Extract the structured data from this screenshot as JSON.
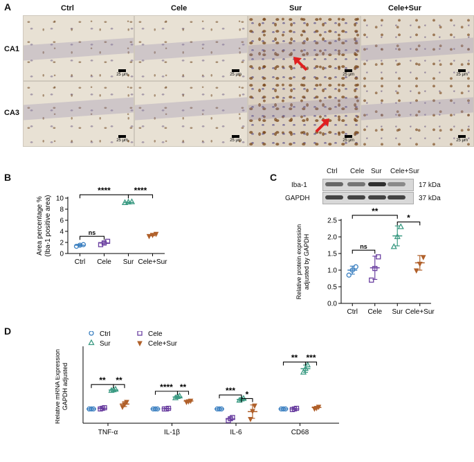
{
  "panel_letters": {
    "a": "A",
    "b": "B",
    "c": "C",
    "d": "D"
  },
  "panel_a": {
    "columns": [
      "Ctrl",
      "Cele",
      "Sur",
      "Cele+Sur"
    ],
    "rows": [
      "CA1",
      "CA3"
    ],
    "scale_bar": "25 μm"
  },
  "panel_c_blot": {
    "lanes": [
      "Ctrl",
      "Cele",
      "Sur",
      "Cele+Sur"
    ],
    "rows": [
      {
        "name": "Iba-1",
        "size": "17 kDa",
        "intensity": [
          0.55,
          0.45,
          0.95,
          0.3
        ]
      },
      {
        "name": "GAPDH",
        "size": "37 kDa",
        "intensity": [
          0.8,
          0.8,
          0.8,
          0.8
        ]
      }
    ]
  },
  "chart_data": [
    {
      "type": "scatter",
      "panel": "B",
      "ylabel_line1": "Area percentage %",
      "ylabel_line2": "(Iba-1 positive area)",
      "categories": [
        "Ctrl",
        "Cele",
        "Sur",
        "Cele+Sur"
      ],
      "ylim": [
        0,
        10
      ],
      "yticks": [
        "0",
        "2",
        "4",
        "6",
        "8",
        "10"
      ],
      "ytick_values": [
        0,
        2,
        4,
        6,
        8,
        10
      ],
      "markers": [
        "circle",
        "square",
        "triangle",
        "diamond"
      ],
      "colors": [
        "#3a7fc0",
        "#6a3fa0",
        "#3a9a82",
        "#b0602a"
      ],
      "points": [
        [
          1.3,
          1.5,
          1.6
        ],
        [
          1.6,
          1.9,
          2.2
        ],
        [
          9.15,
          9.25,
          9.3
        ],
        [
          3.2,
          3.4,
          3.6
        ]
      ],
      "mean": [
        1.5,
        1.9,
        9.2,
        3.4
      ],
      "sd": [
        0.15,
        0.3,
        0.08,
        0.2
      ],
      "annotations": [
        {
          "text": "ns",
          "from": 0,
          "to": 1,
          "y": 3.1
        },
        {
          "text": "****",
          "from": 0,
          "to": 2,
          "y": 10.6
        },
        {
          "text": "****",
          "from": 2,
          "to": 3,
          "y": 10.6
        }
      ]
    },
    {
      "type": "scatter",
      "panel": "C",
      "ylabel_line1": "Relative protein expression",
      "ylabel_line2": "adjusted by GAPDH",
      "categories": [
        "Ctrl",
        "Cele",
        "Sur",
        "Cele+Sur"
      ],
      "ylim": [
        0,
        2.5
      ],
      "yticks": [
        "0.0",
        "0.5",
        "1.0",
        "1.5",
        "2.0",
        "2.5"
      ],
      "ytick_values": [
        0,
        0.5,
        1,
        1.5,
        2,
        2.5
      ],
      "markers": [
        "circle",
        "square",
        "triangle",
        "diamond"
      ],
      "colors": [
        "#3a7fc0",
        "#6a3fa0",
        "#3a9a82",
        "#b0602a"
      ],
      "points": [
        [
          0.85,
          1.0,
          1.1
        ],
        [
          0.7,
          1.05,
          1.4
        ],
        [
          1.7,
          2.0,
          2.3
        ],
        [
          1.0,
          1.2,
          1.4
        ]
      ],
      "mean": [
        1.0,
        1.07,
        2.03,
        1.22
      ],
      "sd": [
        0.12,
        0.35,
        0.3,
        0.22
      ],
      "annotations": [
        {
          "text": "ns",
          "from": 0,
          "to": 1,
          "y": 1.6
        },
        {
          "text": "**",
          "from": 0,
          "to": 2,
          "y": 2.65
        },
        {
          "text": "*",
          "from": 2,
          "to": 3,
          "y": 2.45
        }
      ]
    },
    {
      "type": "scatter",
      "panel": "D",
      "ylabel_line1": "Relative mRNA Expression",
      "ylabel_line2": "GAPDH adjusted",
      "legend": [
        "Ctrl",
        "Cele",
        "Sur",
        "Cele+Sur"
      ],
      "groups": [
        "TNF-α",
        "IL-1β",
        "IL-6",
        "CD68"
      ],
      "markers": [
        "circle",
        "square",
        "triangle",
        "diamond"
      ],
      "colors": [
        "#3a7fc0",
        "#6a3fa0",
        "#3a9a82",
        "#b0602a"
      ],
      "ylim": [
        0,
        5
      ],
      "points": [
        [
          [
            1.0,
            1.0,
            1.0
          ],
          [
            1.0,
            1.05,
            1.1
          ],
          [
            2.5,
            2.55,
            2.6
          ],
          [
            1.2,
            1.4,
            1.6
          ]
        ],
        [
          [
            1.0,
            1.0,
            1.0
          ],
          [
            1.0,
            1.0,
            1.05
          ],
          [
            1.9,
            2.0,
            2.05
          ],
          [
            1.6,
            1.65,
            1.7
          ]
        ],
        [
          [
            1.0,
            1.0,
            1.0
          ],
          [
            0.05,
            0.2,
            0.3
          ],
          [
            1.7,
            1.8,
            1.85
          ],
          [
            0.2,
            0.85,
            1.3
          ]
        ],
        [
          [
            1.0,
            1.0,
            1.0
          ],
          [
            0.95,
            1.0,
            1.05
          ],
          [
            4.0,
            4.3,
            4.6
          ],
          [
            1.05,
            1.1,
            1.2
          ]
        ]
      ],
      "mean": [
        [
          1.0,
          1.05,
          2.55,
          1.4
        ],
        [
          1.0,
          1.02,
          1.98,
          1.65
        ],
        [
          1.0,
          0.18,
          1.78,
          0.78
        ],
        [
          1.0,
          1.0,
          4.3,
          1.12
        ]
      ],
      "sd": [
        [
          0.0,
          0.05,
          0.05,
          0.2
        ],
        [
          0.0,
          0.03,
          0.08,
          0.05
        ],
        [
          0.0,
          0.12,
          0.08,
          0.55
        ],
        [
          0.0,
          0.05,
          0.3,
          0.08
        ]
      ],
      "annotations": [
        {
          "group": 0,
          "from": 0,
          "to": 2,
          "text": "**",
          "y": 3.0
        },
        {
          "group": 0,
          "from": 2,
          "to": 3,
          "text": "**",
          "y": 3.0
        },
        {
          "group": 1,
          "from": 0,
          "to": 2,
          "text": "****",
          "y": 2.45
        },
        {
          "group": 1,
          "from": 2,
          "to": 3,
          "text": "**",
          "y": 2.45
        },
        {
          "group": 2,
          "from": 0,
          "to": 2,
          "text": "***",
          "y": 2.15
        },
        {
          "group": 2,
          "from": 2,
          "to": 3,
          "text": "*",
          "y": 1.85
        },
        {
          "group": 3,
          "from": 0,
          "to": 2,
          "text": "**",
          "y": 4.85
        },
        {
          "group": 3,
          "from": 2,
          "to": 3,
          "text": "***",
          "y": 4.85
        }
      ]
    }
  ]
}
